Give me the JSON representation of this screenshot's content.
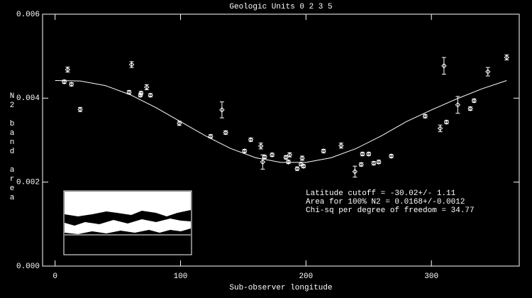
{
  "chart_data": {
    "type": "scatter",
    "title": "Geologic Units 0 2 3 5",
    "x_label": "Sub-observer longitude",
    "y_label": "N2 band area",
    "xlim": [
      -10,
      370
    ],
    "ylim": [
      0,
      0.006
    ],
    "xticks": [
      0,
      100,
      200,
      300
    ],
    "yticks": [
      {
        "value": 0,
        "label": "0.000"
      },
      0.002,
      0.004,
      0.006
    ],
    "annotations": [
      "Latitude cutoff = -30.02+/-  1.11",
      "Area for 100% N2 = 0.0168+/-0.0012",
      "Chi-sq per degree of freedom = 34.77"
    ],
    "series": [
      {
        "type": "scatter",
        "color": "#ffffff",
        "x": [
          7.3,
          10,
          13,
          20,
          59,
          61,
          68,
          68.5,
          73,
          76,
          99,
          124,
          133,
          136,
          151,
          156,
          164,
          165.5,
          167,
          173,
          184,
          186,
          187,
          193,
          196,
          197,
          198,
          214,
          228,
          239,
          244,
          245,
          250,
          254,
          258,
          268,
          295,
          307,
          310,
          312,
          321,
          331,
          334,
          345,
          360
        ],
        "values": [
          0.00439,
          0.00468,
          0.00433,
          0.00373,
          0.00414,
          0.0048,
          0.00407,
          0.00412,
          0.00426,
          0.00407,
          0.0034,
          0.00309,
          0.00372,
          0.00318,
          0.00274,
          0.00301,
          0.00286,
          0.00248,
          0.0026,
          0.00265,
          0.00259,
          0.00248,
          0.00265,
          0.00232,
          0.00243,
          0.00257,
          0.00238,
          0.00274,
          0.00287,
          0.00225,
          0.00242,
          0.00267,
          0.00267,
          0.00245,
          0.00248,
          0.00262,
          0.00357,
          0.00328,
          0.00477,
          0.00343,
          0.00384,
          0.00375,
          0.00394,
          0.00463,
          0.00497
        ],
        "errors": [
          4e-05,
          6e-05,
          4e-05,
          5e-05,
          4e-05,
          7e-05,
          4e-05,
          4e-05,
          6e-05,
          4e-05,
          5e-05,
          4e-05,
          0.00019,
          4e-05,
          4e-05,
          4e-05,
          7e-05,
          0.00017,
          4e-05,
          4e-05,
          4e-05,
          4e-05,
          5e-05,
          4e-05,
          4e-05,
          5e-05,
          4e-05,
          4e-05,
          6e-05,
          0.00013,
          4e-05,
          4e-05,
          4e-05,
          4e-05,
          4e-05,
          4e-05,
          4e-05,
          8e-05,
          0.0002,
          4e-05,
          0.0002,
          4e-05,
          4e-05,
          0.0001,
          6e-05
        ]
      },
      {
        "type": "line",
        "color": "#ffffff",
        "x": [
          0,
          20,
          40,
          60,
          80,
          100,
          120,
          140,
          160,
          180,
          200,
          220,
          240,
          260,
          280,
          300,
          320,
          340,
          360
        ],
        "values": [
          0.00442,
          0.00441,
          0.0043,
          0.00408,
          0.00378,
          0.00344,
          0.0031,
          0.0028,
          0.00258,
          0.00247,
          0.00247,
          0.00258,
          0.0028,
          0.0031,
          0.00344,
          0.00372,
          0.00398,
          0.00422,
          0.00442
        ]
      }
    ]
  }
}
